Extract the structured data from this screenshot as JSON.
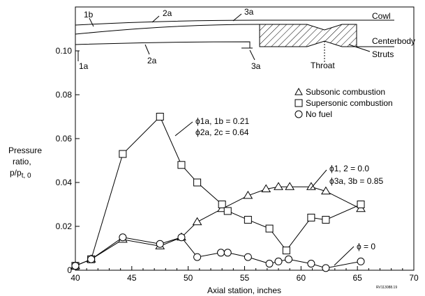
{
  "chart_data": {
    "type": "line",
    "xlabel": "Axial station, inches",
    "ylabel_lines": [
      "Pressure",
      "ratio,",
      "p/p",
      "t, 0"
    ],
    "xlim": [
      40,
      70
    ],
    "ylim": [
      0,
      0.1
    ],
    "xticks": [
      "40",
      "45",
      "50",
      "55",
      "60",
      "65",
      "70"
    ],
    "yticks": [
      "0",
      "0.02",
      "0.04",
      "0.06",
      "0.08",
      "0.10"
    ],
    "legend": [
      "Subsonic combustion",
      "Supersonic combustion",
      "No fuel"
    ],
    "series": [
      {
        "name": "Subsonic combustion",
        "marker": "triangle",
        "x": [
          40.0,
          41.4,
          44.2,
          47.5,
          49.4,
          50.8,
          53.0,
          55.3,
          56.9,
          58.0,
          59.0,
          60.9,
          62.2,
          65.3
        ],
        "y": [
          0.002,
          0.005,
          0.014,
          0.011,
          0.015,
          0.022,
          0.028,
          0.034,
          0.037,
          0.038,
          0.038,
          0.038,
          0.036,
          0.028
        ]
      },
      {
        "name": "Supersonic combustion",
        "marker": "square",
        "x": [
          40.0,
          41.4,
          44.2,
          47.5,
          49.4,
          50.8,
          53.0,
          53.5,
          55.3,
          57.2,
          58.7,
          60.9,
          62.2,
          65.3
        ],
        "y": [
          0.002,
          0.005,
          0.053,
          0.07,
          0.048,
          0.04,
          0.03,
          0.027,
          0.023,
          0.019,
          0.009,
          0.024,
          0.023,
          0.03
        ]
      },
      {
        "name": "No fuel",
        "marker": "circle",
        "x": [
          40.0,
          41.4,
          44.2,
          47.5,
          49.4,
          50.8,
          52.9,
          53.5,
          55.3,
          57.2,
          58.0,
          58.9,
          60.9,
          62.2,
          65.3
        ],
        "y": [
          0.002,
          0.005,
          0.015,
          0.012,
          0.015,
          0.006,
          0.008,
          0.008,
          0.006,
          0.003,
          0.004,
          0.005,
          0.003,
          0.001,
          0.004
        ]
      }
    ],
    "annotations": {
      "phi1_line1": "ϕ1a, 1b = 0.21",
      "phi1_line2": "ϕ2a, 2c = 0.64",
      "phi2_line1": "ϕ1, 2 = 0.0",
      "phi2_line2": "ϕ3a, 3b = 0.85",
      "phi3": "ϕ = 0"
    },
    "schematic": {
      "labels": {
        "s1b": "1b",
        "s2a_top": "2a",
        "s3a_top": "3a",
        "s1a": "1a",
        "s2a_bot": "2a",
        "s3a_bot": "3a",
        "cowl": "Cowl",
        "centerbody": "Centerbody",
        "struts": "Struts",
        "throat": "Throat"
      }
    },
    "figure_id": "RV113088.19"
  }
}
